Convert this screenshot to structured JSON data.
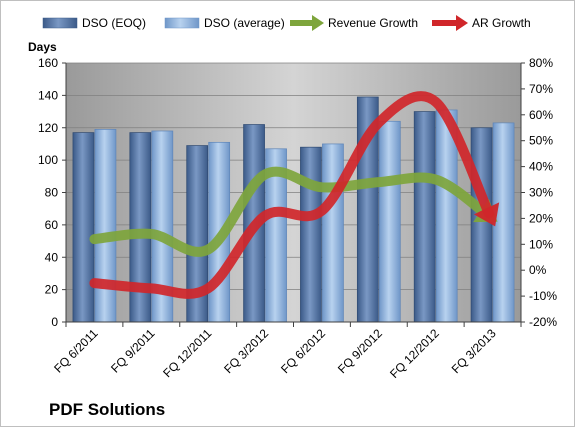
{
  "chart_data": {
    "type": "bar",
    "company": "PDF Solutions",
    "categories": [
      "FQ 6/2011",
      "FQ 9/2011",
      "FQ 12/2011",
      "FQ 3/2012",
      "FQ 6/2012",
      "FQ 9/2012",
      "FQ 12/2012",
      "FQ 3/2013"
    ],
    "y_left": {
      "label": "Days",
      "range": [
        0,
        160
      ],
      "ticks": [
        "0",
        "20",
        "40",
        "60",
        "80",
        "100",
        "120",
        "140",
        "160"
      ]
    },
    "y_right": {
      "range": [
        -20,
        80
      ],
      "ticks": [
        "-20%",
        "-10%",
        "0%",
        "10%",
        "20%",
        "30%",
        "40%",
        "50%",
        "60%",
        "70%",
        "80%"
      ]
    },
    "legend_position": "top",
    "grid": true,
    "series": [
      {
        "name": "DSO (EOQ)",
        "kind": "bar",
        "axis": "left",
        "color": "#4a6a9a",
        "values": [
          117,
          117,
          109,
          122,
          108,
          139,
          130,
          120
        ]
      },
      {
        "name": "DSO (average)",
        "kind": "bar",
        "axis": "left",
        "color": "#8fb4dd",
        "values": [
          119,
          118,
          111,
          107,
          110,
          124,
          131,
          123
        ]
      },
      {
        "name": "Revenue Growth",
        "kind": "line-arrow",
        "axis": "right",
        "color": "#7ea53c",
        "values": [
          12,
          14,
          8,
          37,
          32,
          34,
          35,
          20
        ]
      },
      {
        "name": "AR Growth",
        "kind": "line-arrow",
        "axis": "right",
        "color": "#d0262a",
        "values": [
          -5,
          -7,
          -7,
          21,
          23,
          57,
          65,
          19
        ]
      }
    ]
  }
}
